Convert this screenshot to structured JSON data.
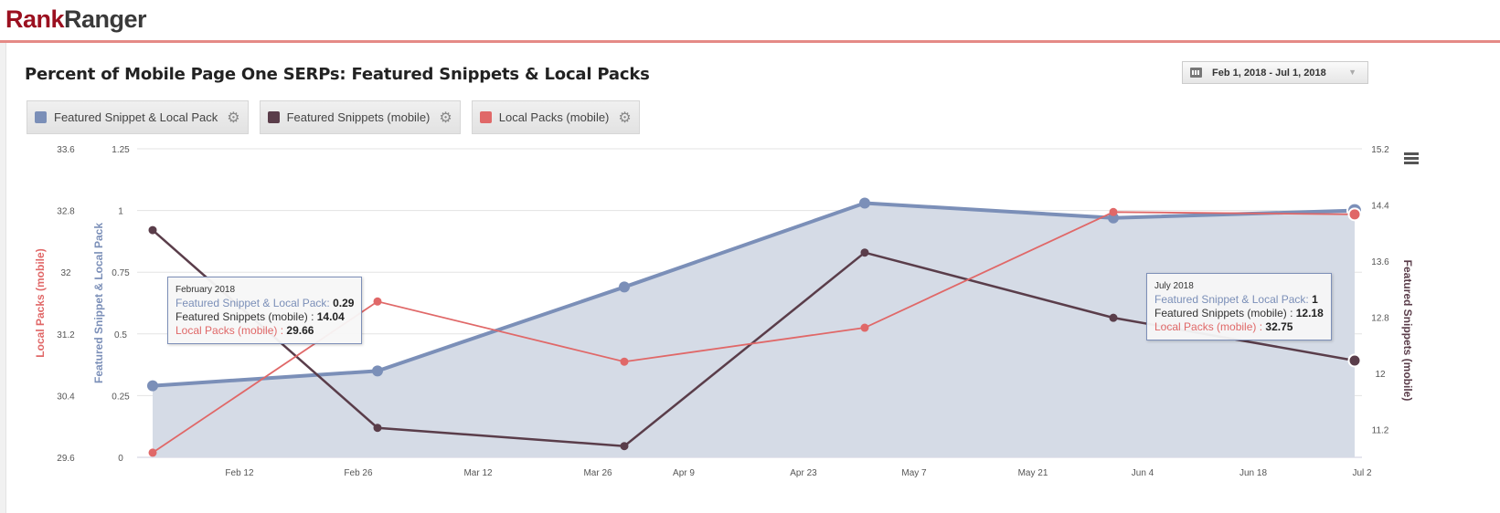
{
  "logo": {
    "part1": "Rank",
    "part2": "Ranger"
  },
  "title": "Percent of Mobile Page One SERPs: Featured Snippets & Local Packs",
  "date_range": "Feb 1, 2018 - Jul 1, 2018",
  "legend": [
    {
      "label": "Featured Snippet & Local Pack",
      "color": "#7b8fb8"
    },
    {
      "label": "Featured Snippets (mobile)",
      "color": "#5a3d4a"
    },
    {
      "label": "Local Packs (mobile)",
      "color": "#e06868"
    }
  ],
  "tooltips": [
    {
      "header": "February 2018",
      "rows": [
        {
          "label": "Featured Snippet & Local Pack:",
          "value": "0.29"
        },
        {
          "label": "Featured Snippets (mobile) :",
          "value": "14.04"
        },
        {
          "label": "Local Packs (mobile) :",
          "value": "29.66"
        }
      ]
    },
    {
      "header": "July 2018",
      "rows": [
        {
          "label": "Featured Snippet & Local Pack:",
          "value": "1"
        },
        {
          "label": "Featured Snippets (mobile) :",
          "value": "12.18"
        },
        {
          "label": "Local Packs (mobile) :",
          "value": "32.75"
        }
      ]
    }
  ],
  "chart_data": {
    "type": "line",
    "title": "Percent of Mobile Page One SERPs: Featured Snippets & Local Packs",
    "x": [
      "2018-02-01",
      "2018-03-01",
      "2018-04-01",
      "2018-05-01",
      "2018-06-01",
      "2018-07-01"
    ],
    "x_ticks": [
      "Feb 12",
      "Feb 26",
      "Mar 12",
      "Mar 26",
      "Apr 9",
      "Apr 23",
      "May 7",
      "May 21",
      "Jun 4",
      "Jun 18",
      "Jul 2"
    ],
    "axes": {
      "left_inner": {
        "label": "Featured Snippet & Local Pack",
        "range": [
          0,
          1.25
        ],
        "ticks": [
          "0",
          "0.25",
          "0.5",
          "0.75",
          "1",
          "1.25"
        ]
      },
      "left_outer": {
        "label": "Local Packs (mobile)",
        "range": [
          29.6,
          33.6
        ],
        "ticks": [
          "29.6",
          "30.4",
          "31.2",
          "32",
          "32.8",
          "33.6"
        ]
      },
      "right": {
        "label": "Featured Snippets (mobile)",
        "range": [
          10.8,
          15.2
        ],
        "ticks": [
          "11.2",
          "12",
          "12.8",
          "13.6",
          "14.4",
          "15.2"
        ]
      }
    },
    "series": [
      {
        "name": "Featured Snippet & Local Pack",
        "axis": "left_inner",
        "style": "area",
        "values": [
          0.29,
          0.35,
          0.69,
          1.03,
          0.97,
          1
        ]
      },
      {
        "name": "Featured Snippets (mobile)",
        "axis": "right",
        "values": [
          14.04,
          11.22,
          10.96,
          13.72,
          12.79,
          12.18
        ]
      },
      {
        "name": "Local Packs (mobile)",
        "axis": "left_outer",
        "values": [
          29.66,
          31.62,
          30.84,
          31.28,
          32.78,
          32.75
        ]
      }
    ],
    "grid": true,
    "legend": "top-left"
  }
}
